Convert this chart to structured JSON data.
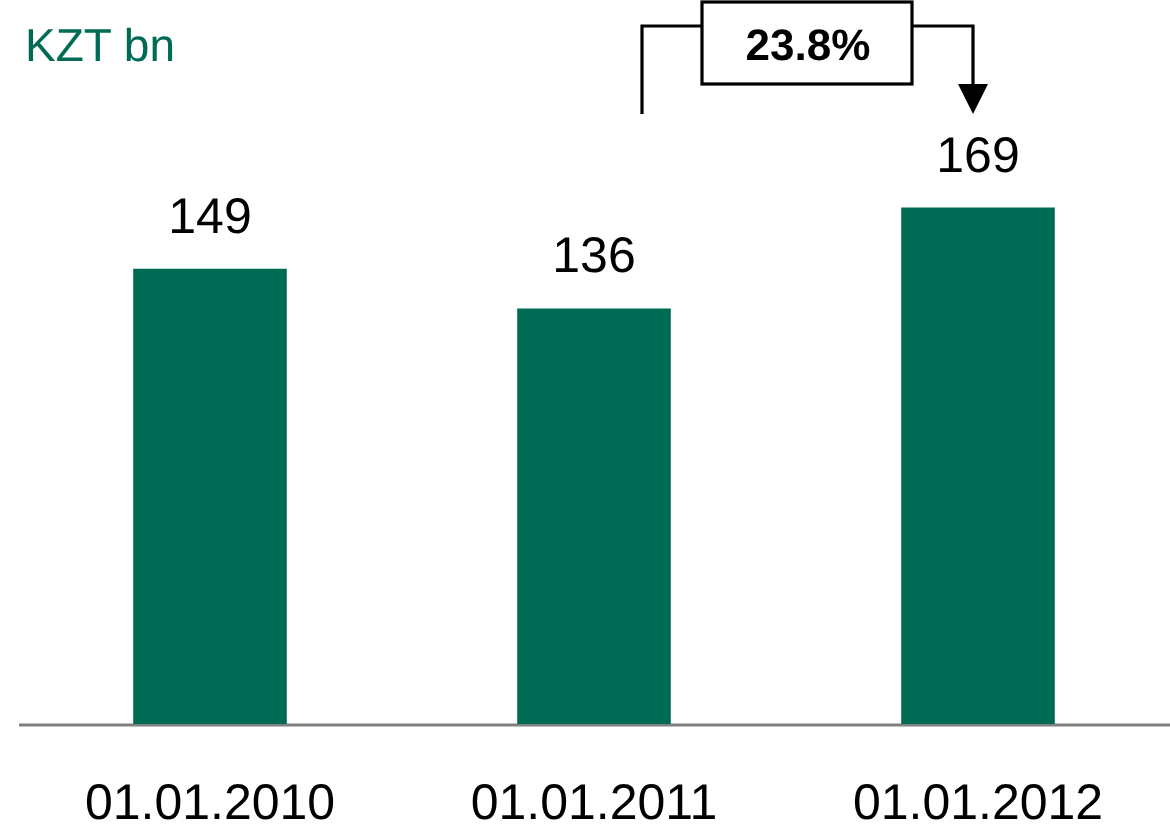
{
  "chart_data": {
    "type": "bar",
    "ylabel": "KZT bn",
    "categories": [
      "01.01.2010",
      "01.01.2011",
      "01.01.2012"
    ],
    "values": [
      149,
      136,
      169
    ],
    "color": "#006b54",
    "data_labels": true,
    "annotations": [
      "23.8%"
    ]
  }
}
